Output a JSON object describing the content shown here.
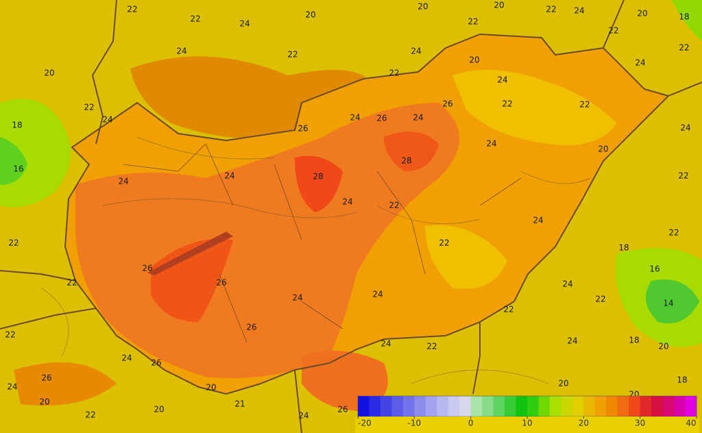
{
  "map": {
    "contour_labels": [
      22,
      22,
      24,
      20,
      20,
      20,
      22,
      24,
      20,
      18,
      22,
      24,
      22,
      24,
      20,
      22,
      22,
      22,
      24,
      20,
      22,
      18,
      24,
      16,
      24,
      26,
      22,
      22,
      24,
      26,
      24,
      26,
      24,
      20,
      24,
      28,
      28,
      24,
      24,
      24,
      22,
      22,
      24,
      22,
      22,
      22,
      18,
      26,
      16,
      22,
      26,
      24,
      24,
      22,
      24,
      14,
      22,
      26,
      22,
      24,
      22,
      24,
      18,
      24,
      26,
      20,
      26,
      24,
      20,
      20,
      18,
      20,
      21,
      20,
      22,
      20,
      24,
      26
    ],
    "colorbar": {
      "lim": [
        -20,
        40
      ],
      "ticks": [
        -20,
        -10,
        0,
        10,
        20,
        30,
        40
      ],
      "colors": [
        "#1010e0",
        "#2a2ae4",
        "#4444e6",
        "#5c5ce8",
        "#7474ea",
        "#8c8cec",
        "#a2a2ee",
        "#b8b8f0",
        "#cacaf0",
        "#d8d8ec",
        "#a8e4a8",
        "#88dc88",
        "#60d460",
        "#38cc38",
        "#10c410",
        "#30cc10",
        "#70d800",
        "#a8e000",
        "#c8d800",
        "#e0d000",
        "#e8b800",
        "#f0a000",
        "#f08800",
        "#f06c10",
        "#f04818",
        "#e02828",
        "#d81040",
        "#d80870",
        "#d800a8",
        "#e000e0"
      ]
    }
  }
}
